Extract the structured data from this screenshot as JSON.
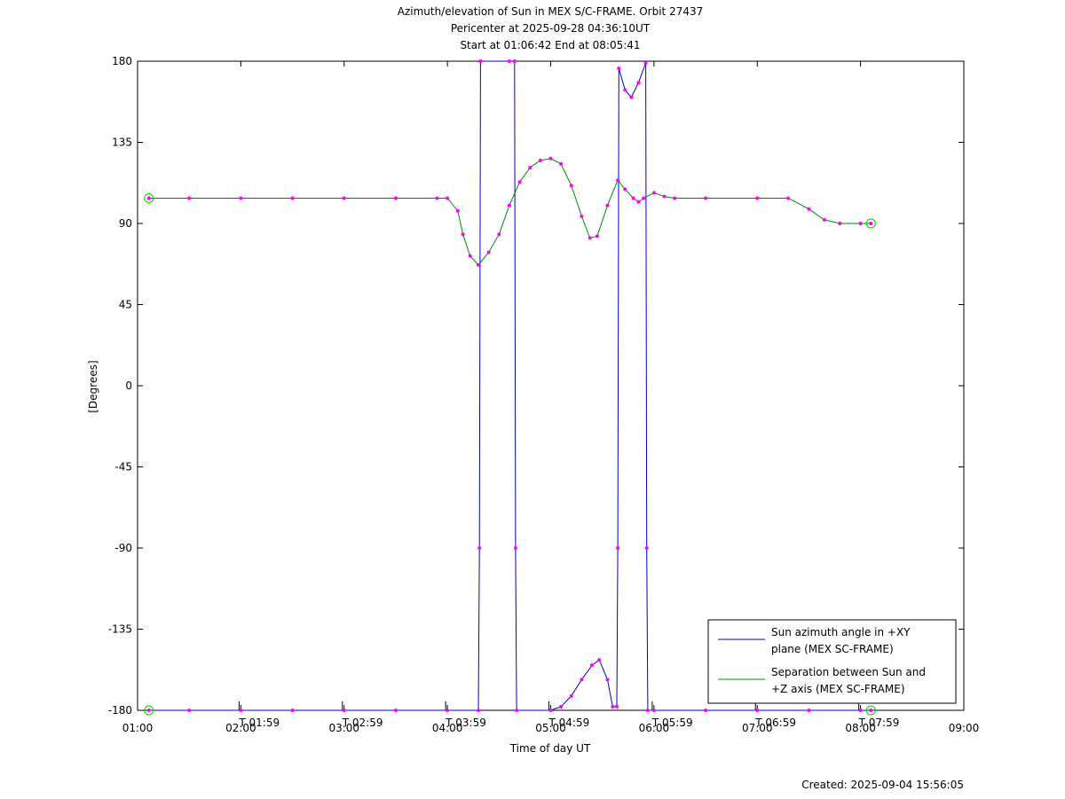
{
  "chart_data": {
    "type": "line",
    "title_lines": [
      "Azimuth/elevation of Sun in MEX S/C-FRAME.  Orbit 27437",
      "Pericenter at 2025-09-28 04:36:10UT",
      "Start at 01:06:42 End at 08:05:41"
    ],
    "xlabel": "Time of day UT",
    "ylabel": "[Degrees]",
    "xlim": [
      1.0,
      9.0
    ],
    "ylim": [
      -180,
      180
    ],
    "x_ticks": [
      {
        "v": 1.0,
        "label": "01:00"
      },
      {
        "v": 2.0,
        "label": "02:00"
      },
      {
        "v": 3.0,
        "label": "03:00"
      },
      {
        "v": 4.0,
        "label": "04:00"
      },
      {
        "v": 5.0,
        "label": "05:00"
      },
      {
        "v": 6.0,
        "label": "06:00"
      },
      {
        "v": 7.0,
        "label": "07:00"
      },
      {
        "v": 8.0,
        "label": "08:00"
      },
      {
        "v": 9.0,
        "label": "09:00"
      }
    ],
    "y_ticks": [
      {
        "v": 180,
        "label": "180"
      },
      {
        "v": 135,
        "label": "135"
      },
      {
        "v": 90,
        "label": "90"
      },
      {
        "v": 45,
        "label": "45"
      },
      {
        "v": 0,
        "label": "0"
      },
      {
        "v": -45,
        "label": "-45"
      },
      {
        "v": -90,
        "label": "-90"
      },
      {
        "v": -135,
        "label": "-135"
      },
      {
        "v": -180,
        "label": "-180"
      }
    ],
    "time_markers": [
      {
        "v": 1.983,
        "label": "T 01:59"
      },
      {
        "v": 2.983,
        "label": "T 02:59"
      },
      {
        "v": 3.983,
        "label": "T 03:59"
      },
      {
        "v": 4.983,
        "label": "T 04:59"
      },
      {
        "v": 5.983,
        "label": "T 05:59"
      },
      {
        "v": 6.983,
        "label": "T 06:59"
      },
      {
        "v": 7.983,
        "label": "T 07:59"
      }
    ],
    "series": [
      {
        "name": "Sun azimuth angle in +XY plane (MEX SC-FRAME)",
        "legend_lines": [
          "Sun azimuth angle in +XY",
          "plane (MEX SC-FRAME)"
        ],
        "color": "#0000cc",
        "x": [
          1.11,
          1.5,
          2.0,
          2.5,
          3.0,
          3.5,
          4.0,
          4.3,
          4.31,
          4.32,
          4.6,
          4.65,
          4.66,
          4.67,
          5.0,
          5.1,
          5.2,
          5.3,
          5.4,
          5.47,
          5.55,
          5.6,
          5.64,
          5.65,
          5.66,
          5.72,
          5.78,
          5.85,
          5.92,
          5.93,
          5.94,
          6.0,
          6.5,
          7.0,
          7.5,
          8.0,
          8.1
        ],
        "y": [
          -180,
          -180,
          -180,
          -180,
          -180,
          -180,
          -180,
          -180,
          -90,
          180,
          180,
          180,
          -90,
          -180,
          -180,
          -178,
          -172,
          -163,
          -155,
          -152,
          -163,
          -178,
          -178,
          -90,
          176,
          164,
          160,
          168,
          179,
          -90,
          -180,
          -180,
          -180,
          -180,
          -180,
          -180,
          -180
        ]
      },
      {
        "name": "Separation between Sun and +Z axis (MEX SC-FRAME)",
        "legend_lines": [
          "Separation between Sun and",
          "+Z axis (MEX SC-FRAME)"
        ],
        "color": "#008800",
        "x": [
          1.11,
          1.5,
          2.0,
          2.5,
          3.0,
          3.5,
          3.9,
          4.0,
          4.1,
          4.15,
          4.22,
          4.3,
          4.4,
          4.5,
          4.6,
          4.7,
          4.8,
          4.9,
          5.0,
          5.1,
          5.2,
          5.3,
          5.38,
          5.45,
          5.55,
          5.65,
          5.72,
          5.8,
          5.85,
          5.9,
          6.0,
          6.1,
          6.2,
          6.5,
          7.0,
          7.3,
          7.5,
          7.65,
          7.8,
          8.0,
          8.1
        ],
        "y": [
          104,
          104,
          104,
          104,
          104,
          104,
          104,
          104,
          97,
          84,
          72,
          67,
          74,
          84,
          100,
          113,
          121,
          125,
          126,
          123,
          111,
          94,
          82,
          83,
          100,
          114,
          109,
          104,
          102,
          104,
          107,
          105,
          104,
          104,
          104,
          104,
          98,
          92,
          90,
          90,
          90
        ]
      }
    ],
    "legend_position": "bottom-right",
    "grid": false,
    "footer": "Created: 2025-09-04 15:56:05"
  }
}
